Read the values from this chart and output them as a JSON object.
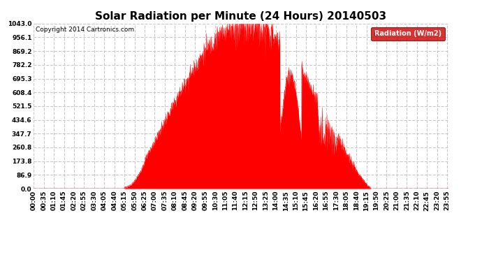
{
  "title": "Solar Radiation per Minute (24 Hours) 20140503",
  "copyright_text": "Copyright 2014 Cartronics.com",
  "legend_label": "Radiation (W/m2)",
  "yticks": [
    0.0,
    86.9,
    173.8,
    260.8,
    347.7,
    434.6,
    521.5,
    608.4,
    695.3,
    782.2,
    869.2,
    956.1,
    1043.0
  ],
  "ymax": 1043.0,
  "ymin": 0.0,
  "fill_color": "#ff0000",
  "line_color": "#ff0000",
  "bg_color": "#ffffff",
  "grid_color": "#c8c8c8",
  "dashed_line_color": "#ff0000",
  "legend_bg": "#cc0000",
  "legend_text_color": "#ffffff",
  "title_fontsize": 11,
  "tick_fontsize": 6.5,
  "copyright_fontsize": 6.5
}
